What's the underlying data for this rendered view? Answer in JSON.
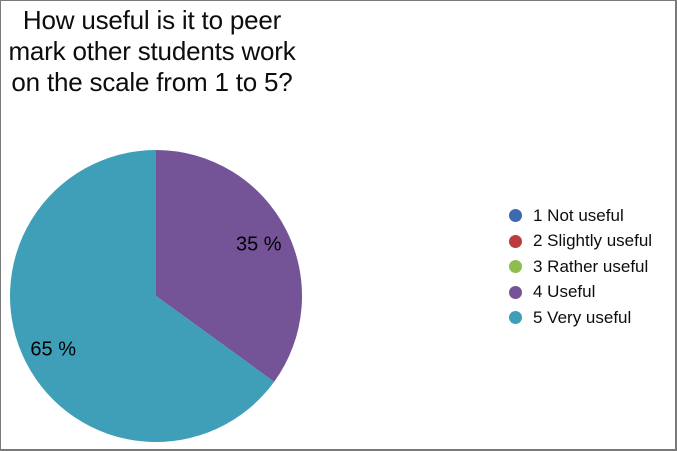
{
  "frame": {
    "background": "#ffffff",
    "border_color": "#7a7a7a"
  },
  "chart_data": {
    "type": "pie",
    "title": "How useful is it to peer mark other students work on the scale from 1 to 5?",
    "title_lines": [
      "How useful is it to peer",
      "mark other students work",
      "on the scale from 1 to 5?"
    ],
    "categories": [
      "1 Not useful",
      "2 Slightly useful",
      "3 Rather useful",
      "4 Useful",
      "5 Very useful"
    ],
    "values": [
      0,
      0,
      0,
      35,
      65
    ],
    "unit": "%",
    "data_labels": [
      "",
      "",
      "",
      "35 %",
      "65 %"
    ],
    "colors": [
      "#3d69b1",
      "#bd3a3e",
      "#8fbc4f",
      "#745397",
      "#3f9fb8"
    ],
    "legend_position": "right",
    "start_angle_deg": 0,
    "rotation": "clockwise"
  }
}
